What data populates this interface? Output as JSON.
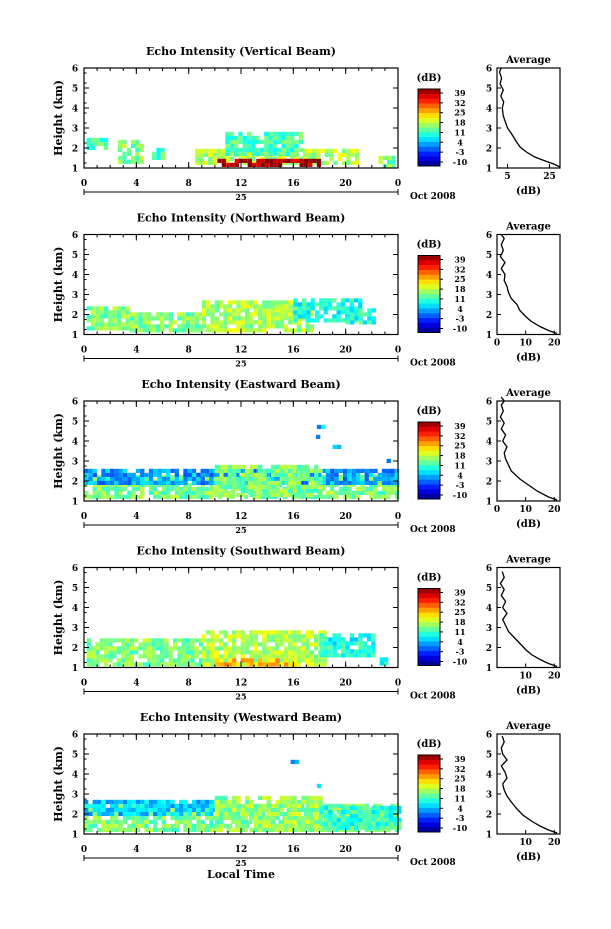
{
  "chart_data": [
    {
      "type": "heatmap",
      "title": "Echo Intensity (Vertical Beam)",
      "ylabel": "Height (km)",
      "xlim": [
        0,
        24
      ],
      "ylim": [
        1,
        6
      ],
      "xticks": [
        "0",
        "4",
        "8",
        "12",
        "16",
        "20",
        "0"
      ],
      "yticks": [
        "1",
        "2",
        "3",
        "4",
        "5",
        "6"
      ],
      "date_label": "25",
      "month_label": "Oct 2008",
      "colorbar": {
        "title": "(dB)",
        "range": [
          -10,
          39
        ],
        "ticks": [
          "39",
          "32",
          "25",
          "18",
          "11",
          "4",
          "-3",
          "-10"
        ]
      },
      "echo_blocks": [
        {
          "t0": 0.2,
          "t1": 1.8,
          "h0": 1.9,
          "h1": 2.4,
          "level": 0.45
        },
        {
          "t0": 2.6,
          "t1": 4.5,
          "h0": 1.2,
          "h1": 2.2,
          "level": 0.5
        },
        {
          "t0": 5.2,
          "t1": 6.0,
          "h0": 1.4,
          "h1": 1.9,
          "level": 0.45
        },
        {
          "t0": 8.5,
          "t1": 21.0,
          "h0": 1.15,
          "h1": 1.9,
          "level": 0.55
        },
        {
          "t0": 10.8,
          "t1": 16.5,
          "h0": 1.6,
          "h1": 2.7,
          "level": 0.45
        },
        {
          "t0": 10.2,
          "t1": 17.8,
          "h0": 1.05,
          "h1": 1.3,
          "level": 0.95
        },
        {
          "t0": 22.5,
          "t1": 23.8,
          "h0": 1.0,
          "h1": 1.5,
          "level": 0.5
        }
      ],
      "average": {
        "title": "Average",
        "xlabel": "(dB)",
        "xlim": [
          0,
          30
        ],
        "xticks": [
          "5",
          "25"
        ],
        "profile": [
          [
            30,
            1.05
          ],
          [
            27,
            1.2
          ],
          [
            23,
            1.35
          ],
          [
            18,
            1.55
          ],
          [
            14,
            1.8
          ],
          [
            11,
            2.05
          ],
          [
            9,
            2.35
          ],
          [
            7,
            2.7
          ],
          [
            5,
            3.0
          ],
          [
            4,
            3.3
          ],
          [
            3,
            3.6
          ],
          [
            2.5,
            4.0
          ],
          [
            3.2,
            4.3
          ],
          [
            1.8,
            4.6
          ],
          [
            3,
            4.9
          ],
          [
            1.5,
            5.2
          ],
          [
            2.2,
            5.5
          ],
          [
            1.2,
            5.8
          ],
          [
            2,
            6.0
          ]
        ]
      }
    },
    {
      "type": "heatmap",
      "title": "Echo Intensity (Northward Beam)",
      "ylabel": "Height (km)",
      "xlim": [
        0,
        24
      ],
      "ylim": [
        1,
        6
      ],
      "xticks": [
        "0",
        "4",
        "8",
        "12",
        "16",
        "20",
        "0"
      ],
      "yticks": [
        "1",
        "2",
        "3",
        "4",
        "5",
        "6"
      ],
      "date_label": "25",
      "month_label": "Oct 2008",
      "colorbar": {
        "title": "(dB)",
        "range": [
          -10,
          39
        ],
        "ticks": [
          "39",
          "32",
          "25",
          "18",
          "11",
          "4",
          "-3",
          "-10"
        ]
      },
      "echo_blocks": [
        {
          "t0": 0.2,
          "t1": 3.5,
          "h0": 1.2,
          "h1": 2.3,
          "level": 0.5
        },
        {
          "t0": 3.5,
          "t1": 9.0,
          "h0": 1.1,
          "h1": 2.0,
          "level": 0.5
        },
        {
          "t0": 9.0,
          "t1": 17.5,
          "h0": 1.1,
          "h1": 2.6,
          "level": 0.55
        },
        {
          "t0": 16.0,
          "t1": 21.0,
          "h0": 1.6,
          "h1": 2.8,
          "level": 0.4
        },
        {
          "t0": 20.0,
          "t1": 22.0,
          "h0": 1.5,
          "h1": 2.3,
          "level": 0.4
        }
      ],
      "average": {
        "title": "Average",
        "xlabel": "(dB)",
        "xlim": [
          0,
          22
        ],
        "xticks": [
          "0",
          "10",
          "20"
        ],
        "profile": [
          [
            21,
            1.05
          ],
          [
            18,
            1.2
          ],
          [
            15,
            1.4
          ],
          [
            12,
            1.65
          ],
          [
            10,
            1.9
          ],
          [
            8,
            2.2
          ],
          [
            7,
            2.5
          ],
          [
            5,
            2.8
          ],
          [
            4,
            3.1
          ],
          [
            3.5,
            3.4
          ],
          [
            2.5,
            3.7
          ],
          [
            2.8,
            4.0
          ],
          [
            1.5,
            4.3
          ],
          [
            2.8,
            4.6
          ],
          [
            1.2,
            4.9
          ],
          [
            2.2,
            5.2
          ],
          [
            1.5,
            5.5
          ],
          [
            2.5,
            5.8
          ],
          [
            1.5,
            6.0
          ]
        ]
      }
    },
    {
      "type": "heatmap",
      "title": "Echo Intensity (Eastward Beam)",
      "ylabel": "Height (km)",
      "xlim": [
        0,
        24
      ],
      "ylim": [
        1,
        6
      ],
      "xticks": [
        "0",
        "4",
        "8",
        "12",
        "16",
        "20",
        "0"
      ],
      "yticks": [
        "1",
        "2",
        "3",
        "4",
        "5",
        "6"
      ],
      "date_label": "25",
      "month_label": "Oct 2008",
      "colorbar": {
        "title": "(dB)",
        "range": [
          -10,
          39
        ],
        "ticks": [
          "39",
          "32",
          "25",
          "18",
          "11",
          "4",
          "-3",
          "-10"
        ]
      },
      "echo_blocks": [
        {
          "t0": 0.0,
          "t1": 24.0,
          "h0": 1.1,
          "h1": 2.3,
          "level": 0.5
        },
        {
          "t0": 0.0,
          "t1": 24.0,
          "h0": 1.8,
          "h1": 2.5,
          "level": 0.28
        },
        {
          "t0": 10.0,
          "t1": 18.0,
          "h0": 1.2,
          "h1": 2.7,
          "level": 0.5
        },
        {
          "t0": 17.8,
          "t1": 18.2,
          "h0": 4.6,
          "h1": 4.8,
          "level": 0.3
        },
        {
          "t0": 17.4,
          "t1": 17.8,
          "h0": 4.1,
          "h1": 4.3,
          "level": 0.3
        },
        {
          "t0": 19.0,
          "t1": 19.4,
          "h0": 3.6,
          "h1": 3.8,
          "level": 0.3
        },
        {
          "t0": 22.8,
          "t1": 23.2,
          "h0": 2.9,
          "h1": 3.1,
          "level": 0.3
        }
      ],
      "average": {
        "title": "Average",
        "xlabel": "(dB)",
        "xlim": [
          0,
          22
        ],
        "xticks": [
          "0",
          "10",
          "20"
        ],
        "profile": [
          [
            21,
            1.05
          ],
          [
            18,
            1.2
          ],
          [
            14,
            1.5
          ],
          [
            11,
            1.8
          ],
          [
            8,
            2.1
          ],
          [
            5,
            2.5
          ],
          [
            4,
            2.8
          ],
          [
            3,
            3.1
          ],
          [
            2.5,
            3.4
          ],
          [
            3.5,
            3.7
          ],
          [
            2,
            4.0
          ],
          [
            3,
            4.3
          ],
          [
            1.5,
            4.6
          ],
          [
            2.5,
            4.9
          ],
          [
            1.2,
            5.2
          ],
          [
            2.2,
            5.5
          ],
          [
            1.5,
            5.8
          ],
          [
            2.5,
            6.0
          ],
          [
            1.5,
            6.2
          ]
        ]
      }
    },
    {
      "type": "heatmap",
      "title": "Echo Intensity (Southward Beam)",
      "ylabel": "Height (km)",
      "xlim": [
        0,
        24
      ],
      "ylim": [
        1,
        6
      ],
      "xticks": [
        "0",
        "4",
        "8",
        "12",
        "16",
        "20",
        "0"
      ],
      "yticks": [
        "1",
        "2",
        "3",
        "4",
        "5",
        "6"
      ],
      "date_label": "25",
      "month_label": "Oct 2008",
      "colorbar": {
        "title": "(dB)",
        "range": [
          -10,
          39
        ],
        "ticks": [
          "39",
          "32",
          "25",
          "18",
          "11",
          "4",
          "-3",
          "-10"
        ]
      },
      "echo_blocks": [
        {
          "t0": 0.2,
          "t1": 9.0,
          "h0": 1.05,
          "h1": 2.4,
          "level": 0.5
        },
        {
          "t0": 9.0,
          "t1": 18.5,
          "h0": 1.05,
          "h1": 2.8,
          "level": 0.55
        },
        {
          "t0": 10.0,
          "t1": 16.0,
          "h0": 1.05,
          "h1": 1.4,
          "level": 0.68
        },
        {
          "t0": 18.0,
          "t1": 22.0,
          "h0": 1.5,
          "h1": 2.6,
          "level": 0.4
        },
        {
          "t0": 22.6,
          "t1": 23.0,
          "h0": 1.1,
          "h1": 1.5,
          "level": 0.4
        }
      ],
      "average": {
        "title": "Average",
        "xlabel": "(dB)",
        "xlim": [
          0,
          22
        ],
        "xticks": [
          "10",
          "20"
        ],
        "profile": [
          [
            21,
            1.05
          ],
          [
            18,
            1.2
          ],
          [
            15,
            1.4
          ],
          [
            12,
            1.65
          ],
          [
            10,
            1.9
          ],
          [
            8,
            2.2
          ],
          [
            6,
            2.5
          ],
          [
            4,
            2.8
          ],
          [
            3,
            3.1
          ],
          [
            2,
            3.4
          ],
          [
            3.5,
            3.7
          ],
          [
            2,
            4.0
          ],
          [
            3,
            4.3
          ],
          [
            1.5,
            4.6
          ],
          [
            2.5,
            4.9
          ],
          [
            1.2,
            5.2
          ],
          [
            2.5,
            5.5
          ],
          [
            1.8,
            5.8
          ]
        ]
      }
    },
    {
      "type": "heatmap",
      "title": "Echo Intensity (Westward Beam)",
      "ylabel": "Height (km)",
      "xlabel": "Local Time",
      "xlim": [
        0,
        24
      ],
      "ylim": [
        1,
        6
      ],
      "xticks": [
        "0",
        "4",
        "8",
        "12",
        "16",
        "20",
        "0"
      ],
      "yticks": [
        "1",
        "2",
        "3",
        "4",
        "5",
        "6"
      ],
      "date_label": "25",
      "month_label": "Oct 2008",
      "colorbar": {
        "title": "(dB)",
        "range": [
          -10,
          39
        ],
        "ticks": [
          "39",
          "32",
          "25",
          "18",
          "11",
          "4",
          "-3",
          "-10"
        ]
      },
      "echo_blocks": [
        {
          "t0": 0.0,
          "t1": 24.0,
          "h0": 1.1,
          "h1": 2.4,
          "level": 0.5
        },
        {
          "t0": 0.0,
          "t1": 10.0,
          "h0": 1.9,
          "h1": 2.6,
          "level": 0.33
        },
        {
          "t0": 10.0,
          "t1": 18.0,
          "h0": 1.1,
          "h1": 2.8,
          "level": 0.52
        },
        {
          "t0": 18.0,
          "t1": 24.0,
          "h0": 1.2,
          "h1": 2.2,
          "level": 0.42
        },
        {
          "t0": 15.8,
          "t1": 16.2,
          "h0": 4.5,
          "h1": 4.7,
          "level": 0.3
        },
        {
          "t0": 17.8,
          "t1": 18.2,
          "h0": 3.3,
          "h1": 3.5,
          "level": 0.3
        }
      ],
      "average": {
        "title": "Average",
        "xlabel": "(dB)",
        "xlim": [
          0,
          22
        ],
        "xticks": [
          "10",
          "20"
        ],
        "profile": [
          [
            21,
            1.05
          ],
          [
            18,
            1.2
          ],
          [
            15,
            1.4
          ],
          [
            12,
            1.65
          ],
          [
            9,
            1.95
          ],
          [
            7,
            2.25
          ],
          [
            5,
            2.6
          ],
          [
            3.5,
            2.9
          ],
          [
            2.5,
            3.2
          ],
          [
            2,
            3.5
          ],
          [
            3.5,
            3.8
          ],
          [
            2.8,
            4.1
          ],
          [
            1.5,
            4.4
          ],
          [
            3.5,
            4.7
          ],
          [
            2,
            5.0
          ],
          [
            1.5,
            5.3
          ],
          [
            2.5,
            5.6
          ],
          [
            1.8,
            5.9
          ]
        ]
      }
    }
  ]
}
